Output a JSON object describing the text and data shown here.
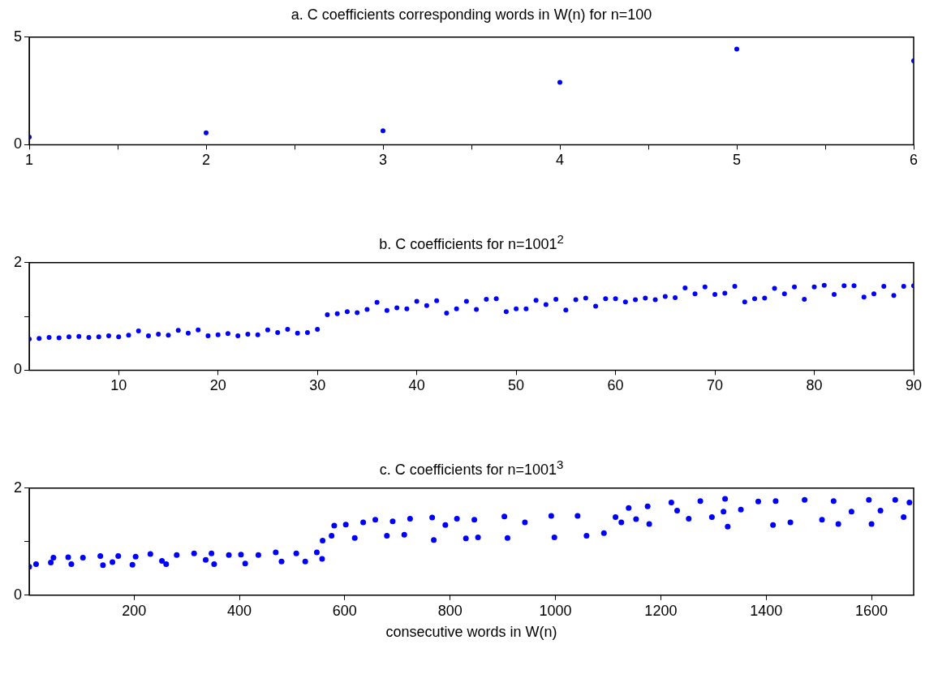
{
  "chart_data": [
    {
      "type": "scatter",
      "title": "a. C coefficients corresponding words in W(n) for n=100",
      "color": "#0000ff",
      "marker": "circle",
      "x": [
        1,
        2,
        3,
        4,
        5,
        6
      ],
      "values": [
        0.35,
        0.55,
        0.65,
        2.9,
        4.45,
        3.9
      ],
      "xlim": [
        1,
        6
      ],
      "xticks": [
        1,
        {
          "value": 1.5,
          "label": null
        },
        2,
        {
          "value": 2.5,
          "label": null
        },
        3,
        {
          "value": 3.5,
          "label": null
        },
        4,
        {
          "value": 4.5,
          "label": null
        },
        5,
        {
          "value": 5.5,
          "label": null
        },
        6
      ],
      "ylim": [
        0,
        5
      ],
      "yticks": [
        0,
        5
      ]
    },
    {
      "type": "scatter",
      "title": "b. C coefficients for n=1001$^{2}$",
      "color": "#0000ff",
      "marker": "circle",
      "x": [
        1,
        2,
        3,
        4,
        5,
        6,
        7,
        8,
        9,
        10,
        11,
        12,
        13,
        14,
        15,
        16,
        17,
        18,
        19,
        20,
        21,
        22,
        23,
        24,
        25,
        26,
        27,
        28,
        29,
        30,
        31,
        32,
        33,
        34,
        35,
        36,
        37,
        38,
        39,
        40,
        41,
        42,
        43,
        44,
        45,
        46,
        47,
        48,
        49,
        50,
        51,
        52,
        53,
        54,
        55,
        56,
        57,
        58,
        59,
        60,
        61,
        62,
        63,
        64,
        65,
        66,
        67,
        68,
        69,
        70,
        71,
        72,
        73,
        74,
        75,
        76,
        77,
        78,
        79,
        80,
        81,
        82,
        83,
        84,
        85,
        86,
        87,
        88,
        89,
        90
      ],
      "values": [
        0.58,
        0.59,
        0.61,
        0.6,
        0.62,
        0.63,
        0.61,
        0.62,
        0.64,
        0.62,
        0.65,
        0.73,
        0.64,
        0.67,
        0.65,
        0.74,
        0.69,
        0.75,
        0.64,
        0.66,
        0.68,
        0.64,
        0.67,
        0.66,
        0.75,
        0.7,
        0.76,
        0.69,
        0.7,
        0.76,
        1.03,
        1.05,
        1.09,
        1.07,
        1.13,
        1.26,
        1.11,
        1.16,
        1.14,
        1.28,
        1.2,
        1.29,
        1.06,
        1.14,
        1.28,
        1.13,
        1.32,
        1.33,
        1.09,
        1.14,
        1.14,
        1.3,
        1.22,
        1.32,
        1.12,
        1.31,
        1.34,
        1.19,
        1.33,
        1.33,
        1.27,
        1.31,
        1.34,
        1.31,
        1.37,
        1.35,
        1.53,
        1.42,
        1.55,
        1.41,
        1.43,
        1.56,
        1.27,
        1.33,
        1.34,
        1.52,
        1.42,
        1.55,
        1.32,
        1.55,
        1.58,
        1.41,
        1.57,
        1.57,
        1.36,
        1.42,
        1.56,
        1.39,
        1.56,
        1.57
      ],
      "xlim": [
        1,
        90
      ],
      "xticks": [
        10,
        20,
        30,
        40,
        50,
        60,
        70,
        80,
        90
      ],
      "ylim": [
        0,
        2
      ],
      "yticks": [
        0,
        {
          "value": 1,
          "label": null
        },
        2
      ]
    },
    {
      "type": "scatter",
      "title": "c. C coefficients for n=1001$^{3}$",
      "xlabel": "consecutive words in W(n)",
      "color": "#0000ff",
      "marker": "circle",
      "x": [
        1,
        14,
        42,
        47,
        75,
        81,
        103,
        136,
        141,
        159,
        170,
        197,
        203,
        231,
        253,
        261,
        281,
        314,
        336,
        347,
        352,
        380,
        403,
        411,
        436,
        469,
        480,
        508,
        525,
        547,
        557,
        558,
        575,
        580,
        602,
        619,
        635,
        658,
        680,
        691,
        713,
        724,
        766,
        769,
        791,
        813,
        830,
        846,
        853,
        903,
        909,
        942,
        992,
        998,
        1042,
        1059,
        1092,
        1114,
        1125,
        1139,
        1153,
        1175,
        1178,
        1220,
        1231,
        1253,
        1275,
        1297,
        1319,
        1322,
        1327,
        1352,
        1385,
        1413,
        1418,
        1446,
        1473,
        1506,
        1528,
        1537,
        1562,
        1595,
        1600,
        1617,
        1645,
        1661,
        1672
      ],
      "values": [
        0.53,
        0.58,
        0.61,
        0.7,
        0.71,
        0.58,
        0.7,
        0.73,
        0.56,
        0.62,
        0.73,
        0.57,
        0.72,
        0.77,
        0.64,
        0.58,
        0.75,
        0.78,
        0.66,
        0.78,
        0.58,
        0.75,
        0.76,
        0.59,
        0.75,
        0.8,
        0.63,
        0.78,
        0.63,
        0.8,
        0.68,
        1.02,
        1.11,
        1.3,
        1.32,
        1.07,
        1.36,
        1.41,
        1.11,
        1.38,
        1.13,
        1.43,
        1.45,
        1.03,
        1.31,
        1.43,
        1.06,
        1.41,
        1.08,
        1.47,
        1.07,
        1.36,
        1.48,
        1.08,
        1.48,
        1.11,
        1.16,
        1.46,
        1.36,
        1.63,
        1.42,
        1.66,
        1.33,
        1.73,
        1.58,
        1.43,
        1.76,
        1.46,
        1.56,
        1.8,
        1.28,
        1.6,
        1.75,
        1.31,
        1.76,
        1.36,
        1.78,
        1.41,
        1.76,
        1.33,
        1.56,
        1.78,
        1.33,
        1.58,
        1.78,
        1.46,
        1.73
      ],
      "xlim": [
        1,
        1680
      ],
      "xticks": [
        200,
        400,
        600,
        800,
        1000,
        1200,
        1400,
        1600
      ],
      "ylim": [
        0,
        2
      ],
      "yticks": [
        0,
        {
          "value": 1,
          "label": null
        },
        2
      ]
    }
  ]
}
